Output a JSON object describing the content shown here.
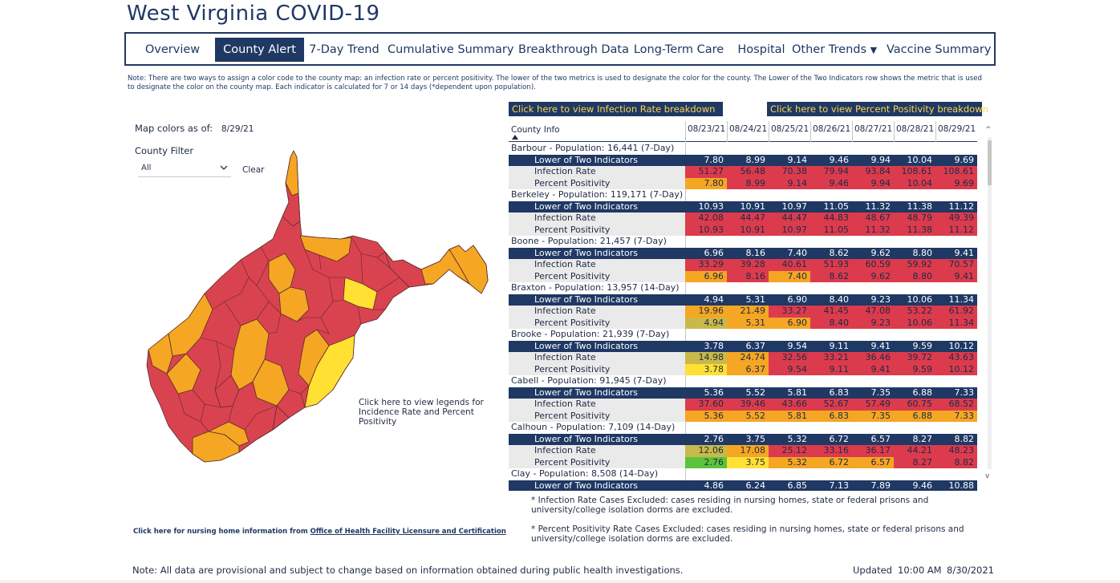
{
  "title": "West Virginia COVID-19",
  "nav": {
    "items": [
      {
        "label": "Overview",
        "active": false
      },
      {
        "label": "County Alert",
        "active": true
      },
      {
        "label": "7-Day Trend",
        "active": false
      },
      {
        "label": "Cumulative Summary",
        "active": false
      },
      {
        "label": "Breakthrough Data",
        "active": false
      },
      {
        "label": "Long-Term Care",
        "active": false
      },
      {
        "label": "Hospital",
        "active": false
      },
      {
        "label": "Other Trends",
        "active": false,
        "dropdown_glyph": "▼"
      },
      {
        "label": "Vaccine Summary",
        "active": false
      }
    ]
  },
  "note": "Note: There are two ways to assign a color code to the county map: an infection rate or percent positivity. The lower of the two metrics is used to designate the color for the county. The Lower of the Two Indicators row shows the metric that is used to designate the color on the county map. Each indicator is calculated for 7 or 14 days (*dependent upon population).",
  "links": {
    "infection_rate": "Click here to view Infection Rate breakdown",
    "percent_positivity": "Click here to view Percent Positivity breakdown"
  },
  "map_panel": {
    "map_colors_label": "Map colors as of:",
    "map_colors_date": "8/29/21",
    "county_filter_label": "County Filter",
    "filter_value": "All",
    "clear_label": "Clear",
    "legend_link": "Click here to view legends for Incidence Rate and Percent Positivity"
  },
  "nursing": {
    "prefix": "Click here for nursing home information from ",
    "link": "Office of Health Facility Licensure and Certification"
  },
  "table": {
    "header_label": "County Info",
    "dates": [
      "08/23/21",
      "08/24/21",
      "08/25/21",
      "08/26/21",
      "08/27/21",
      "08/28/21",
      "08/29/21"
    ],
    "row_labels": {
      "lower": "Lower of Two Indicators",
      "infection": "Infection Rate",
      "positivity": "Percent Positivity"
    },
    "counties": [
      {
        "name": "Barbour - Population: 16,441 (7-Day)",
        "lower": [
          "7.80",
          "8.99",
          "9.14",
          "9.46",
          "9.94",
          "10.04",
          "9.69"
        ],
        "infection": [
          "51.27",
          "56.48",
          "70.38",
          "79.94",
          "93.84",
          "108.61",
          "108.61"
        ],
        "infection_colors": [
          "#dc3b4d",
          "#dc3b4d",
          "#dc3b4d",
          "#dc3b4d",
          "#dc3b4d",
          "#dc3b4d",
          "#dc3b4d"
        ],
        "positivity": [
          "7.80",
          "8.99",
          "9.14",
          "9.46",
          "9.94",
          "10.04",
          "9.69"
        ],
        "positivity_colors": [
          "#f5a623",
          "#dc3b4d",
          "#dc3b4d",
          "#dc3b4d",
          "#dc3b4d",
          "#dc3b4d",
          "#dc3b4d"
        ]
      },
      {
        "name": "Berkeley - Population: 119,171 (7-Day)",
        "lower": [
          "10.93",
          "10.91",
          "10.97",
          "11.05",
          "11.32",
          "11.38",
          "11.12"
        ],
        "infection": [
          "42.08",
          "44.47",
          "44.47",
          "44.83",
          "48.67",
          "48.79",
          "49.39"
        ],
        "infection_colors": [
          "#dc3b4d",
          "#dc3b4d",
          "#dc3b4d",
          "#dc3b4d",
          "#dc3b4d",
          "#dc3b4d",
          "#dc3b4d"
        ],
        "positivity": [
          "10.93",
          "10.91",
          "10.97",
          "11.05",
          "11.32",
          "11.38",
          "11.12"
        ],
        "positivity_colors": [
          "#dc3b4d",
          "#dc3b4d",
          "#dc3b4d",
          "#dc3b4d",
          "#dc3b4d",
          "#dc3b4d",
          "#dc3b4d"
        ]
      },
      {
        "name": "Boone - Population: 21,457 (7-Day)",
        "lower": [
          "6.96",
          "8.16",
          "7.40",
          "8.62",
          "9.62",
          "8.80",
          "9.41"
        ],
        "infection": [
          "33.29",
          "39.28",
          "40.61",
          "51.93",
          "60.59",
          "59.92",
          "70.57"
        ],
        "infection_colors": [
          "#dc3b4d",
          "#dc3b4d",
          "#dc3b4d",
          "#dc3b4d",
          "#dc3b4d",
          "#dc3b4d",
          "#dc3b4d"
        ],
        "positivity": [
          "6.96",
          "8.16",
          "7.40",
          "8.62",
          "9.62",
          "8.80",
          "9.41"
        ],
        "positivity_colors": [
          "#f5a623",
          "#dc3b4d",
          "#f5a623",
          "#dc3b4d",
          "#dc3b4d",
          "#dc3b4d",
          "#dc3b4d"
        ]
      },
      {
        "name": "Braxton - Population: 13,957 (14-Day)",
        "lower": [
          "4.94",
          "5.31",
          "6.90",
          "8.40",
          "9.23",
          "10.06",
          "11.34"
        ],
        "infection": [
          "19.96",
          "21.49",
          "33.27",
          "41.45",
          "47.08",
          "53.22",
          "61.92"
        ],
        "infection_colors": [
          "#f5a623",
          "#f5a623",
          "#dc3b4d",
          "#dc3b4d",
          "#dc3b4d",
          "#dc3b4d",
          "#dc3b4d"
        ],
        "positivity": [
          "4.94",
          "5.31",
          "6.90",
          "8.40",
          "9.23",
          "10.06",
          "11.34"
        ],
        "positivity_colors": [
          "#c8b94a",
          "#f5a623",
          "#f5a623",
          "#dc3b4d",
          "#dc3b4d",
          "#dc3b4d",
          "#dc3b4d"
        ]
      },
      {
        "name": "Brooke - Population: 21,939 (7-Day)",
        "lower": [
          "3.78",
          "6.37",
          "9.54",
          "9.11",
          "9.41",
          "9.59",
          "10.12"
        ],
        "infection": [
          "14.98",
          "24.74",
          "32.56",
          "33.21",
          "36.46",
          "39.72",
          "43.63"
        ],
        "infection_colors": [
          "#c8b94a",
          "#f5a623",
          "#dc3b4d",
          "#dc3b4d",
          "#dc3b4d",
          "#dc3b4d",
          "#dc3b4d"
        ],
        "positivity": [
          "3.78",
          "6.37",
          "9.54",
          "9.11",
          "9.41",
          "9.59",
          "10.12"
        ],
        "positivity_colors": [
          "#ffe033",
          "#f5a623",
          "#dc3b4d",
          "#dc3b4d",
          "#dc3b4d",
          "#dc3b4d",
          "#dc3b4d"
        ]
      },
      {
        "name": "Cabell - Population: 91,945 (7-Day)",
        "lower": [
          "5.36",
          "5.52",
          "5.81",
          "6.83",
          "7.35",
          "6.88",
          "7.33"
        ],
        "infection": [
          "37.60",
          "39.46",
          "43.66",
          "52.67",
          "57.49",
          "60.75",
          "68.52"
        ],
        "infection_colors": [
          "#dc3b4d",
          "#dc3b4d",
          "#dc3b4d",
          "#dc3b4d",
          "#dc3b4d",
          "#dc3b4d",
          "#dc3b4d"
        ],
        "positivity": [
          "5.36",
          "5.52",
          "5.81",
          "6.83",
          "7.35",
          "6.88",
          "7.33"
        ],
        "positivity_colors": [
          "#f5a623",
          "#f5a623",
          "#f5a623",
          "#f5a623",
          "#f5a623",
          "#f5a623",
          "#f5a623"
        ]
      },
      {
        "name": "Calhoun - Population: 7,109 (14-Day)",
        "lower": [
          "2.76",
          "3.75",
          "5.32",
          "6.72",
          "6.57",
          "8.27",
          "8.82"
        ],
        "infection": [
          "12.06",
          "17.08",
          "25.12",
          "33.16",
          "36.17",
          "44.21",
          "48.23"
        ],
        "infection_colors": [
          "#c8b94a",
          "#f5a623",
          "#dc3b4d",
          "#dc3b4d",
          "#dc3b4d",
          "#dc3b4d",
          "#dc3b4d"
        ],
        "positivity": [
          "2.76",
          "3.75",
          "5.32",
          "6.72",
          "6.57",
          "8.27",
          "8.82"
        ],
        "positivity_colors": [
          "#5cc43a",
          "#ffe033",
          "#f5a623",
          "#f5a623",
          "#f5a623",
          "#dc3b4d",
          "#dc3b4d"
        ]
      },
      {
        "name": "Clay - Population: 8,508 (14-Day)",
        "lower": [
          "4.86",
          "6.24",
          "6.85",
          "7.13",
          "7.89",
          "9.46",
          "10.88"
        ]
      }
    ]
  },
  "footnotes": {
    "infection": "* Infection Rate Cases Excluded: cases residing in nursing homes, state or federal prisons and university/college isolation dorms are excluded.",
    "positivity": "* Percent Positivity Rate Cases Excluded: cases residing in nursing homes, state or federal prisons and university/college isolation dorms are excluded."
  },
  "bottom": {
    "note": "Note: All data are provisional and subject to change based on information obtained during public health investigations.",
    "updated_label": "Updated",
    "updated_time": "10:00 AM",
    "updated_date": "8/30/2021"
  },
  "colors": {
    "navy": "#1f3864",
    "red": "#dc3b4d",
    "orange": "#f5a623",
    "yellow": "#ffe033",
    "olive": "#c8b94a",
    "green": "#5cc43a",
    "link_text": "#ffd34d"
  },
  "icons": {
    "dropdown": "chevron-down-icon",
    "sort": "sort-ascending-icon",
    "scroll_up": "scroll-up-icon",
    "scroll_down": "scroll-down-icon"
  }
}
